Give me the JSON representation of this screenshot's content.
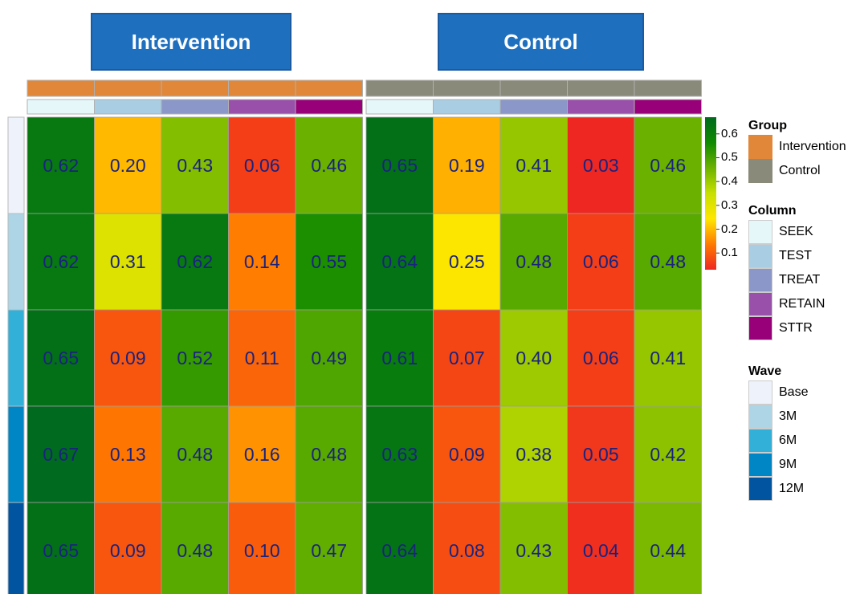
{
  "headers": {
    "left": "Intervention",
    "right": "Control"
  },
  "chart_data": {
    "type": "heatmap",
    "panels": [
      {
        "name": "Intervention",
        "group_color": "#e0873a",
        "rows": [
          "Base",
          "3M",
          "6M",
          "9M",
          "12M"
        ],
        "columns": [
          "SEEK",
          "TEST",
          "TREAT",
          "RETAIN",
          "STTR"
        ],
        "values": [
          [
            0.62,
            0.2,
            0.43,
            0.06,
            0.46
          ],
          [
            0.62,
            0.31,
            0.62,
            0.14,
            0.55
          ],
          [
            0.65,
            0.09,
            0.52,
            0.11,
            0.49
          ],
          [
            0.67,
            0.13,
            0.48,
            0.16,
            0.48
          ],
          [
            0.65,
            0.09,
            0.48,
            0.1,
            0.47
          ]
        ],
        "labels": [
          [
            "0.62",
            "0.20",
            "0.43",
            "0.06",
            "0.46"
          ],
          [
            "0.62",
            "0.31",
            "0.62",
            "0.14",
            "0.55"
          ],
          [
            "0.65",
            "0.09",
            "0.52",
            "0.11",
            "0.49"
          ],
          [
            "0.67",
            "0.13",
            "0.48",
            "0.16",
            "0.48"
          ],
          [
            "0.65",
            "0.09",
            "0.48",
            "0.10",
            "0.47"
          ]
        ]
      },
      {
        "name": "Control",
        "group_color": "#8a8a7a",
        "rows": [
          "Base",
          "3M",
          "6M",
          "9M",
          "12M"
        ],
        "columns": [
          "SEEK",
          "TEST",
          "TREAT",
          "RETAIN",
          "STTR"
        ],
        "values": [
          [
            0.65,
            0.19,
            0.41,
            0.03,
            0.46
          ],
          [
            0.64,
            0.25,
            0.48,
            0.06,
            0.48
          ],
          [
            0.61,
            0.07,
            0.4,
            0.06,
            0.41
          ],
          [
            0.63,
            0.09,
            0.38,
            0.05,
            0.42
          ],
          [
            0.64,
            0.08,
            0.43,
            0.04,
            0.44
          ]
        ],
        "labels": [
          [
            "0.65",
            "0.19",
            "0.41",
            "0.03",
            "0.46"
          ],
          [
            "0.64",
            "0.25",
            "0.48",
            "0.06",
            "0.48"
          ],
          [
            "0.61",
            "0.07",
            "0.40",
            "0.06",
            "0.41"
          ],
          [
            "0.63",
            "0.09",
            "0.38",
            "0.05",
            "0.42"
          ],
          [
            "0.64",
            "0.08",
            "0.43",
            "0.04",
            "0.44"
          ]
        ]
      }
    ],
    "color_scale": {
      "range": [
        0.03,
        0.67
      ],
      "ticks": [
        "0.6",
        "0.5",
        "0.4",
        "0.3",
        "0.2",
        "0.1"
      ],
      "tick_values": [
        0.6,
        0.5,
        0.4,
        0.3,
        0.2,
        0.1
      ],
      "colors": [
        "#ee2722",
        "#ff7a00",
        "#ffe600",
        "#c8e000",
        "#6db200",
        "#0f8a00",
        "#006a1e"
      ]
    },
    "column_colors": {
      "SEEK": "#e6f7fa",
      "TEST": "#a9cde2",
      "TREAT": "#8a97c8",
      "RETAIN": "#9850aa",
      "STTR": "#970078"
    },
    "wave_colors": {
      "Base": "#eef2fb",
      "3M": "#aed5e6",
      "6M": "#33b0d8",
      "9M": "#0086c4",
      "12M": "#0054a0"
    },
    "cell_text_color": "#1a237e",
    "legend": {
      "group_title": "Group",
      "group_items": [
        {
          "label": "Intervention",
          "color": "#e0873a"
        },
        {
          "label": "Control",
          "color": "#8a8a7a"
        }
      ],
      "column_title": "Column",
      "column_items": [
        {
          "label": "SEEK",
          "color": "#e6f7fa"
        },
        {
          "label": "TEST",
          "color": "#a9cde2"
        },
        {
          "label": "TREAT",
          "color": "#8a97c8"
        },
        {
          "label": "RETAIN",
          "color": "#9850aa"
        },
        {
          "label": "STTR",
          "color": "#970078"
        }
      ],
      "wave_title": "Wave",
      "wave_items": [
        {
          "label": "Base",
          "color": "#eef2fb"
        },
        {
          "label": "3M",
          "color": "#aed5e6"
        },
        {
          "label": "6M",
          "color": "#33b0d8"
        },
        {
          "label": "9M",
          "color": "#0086c4"
        },
        {
          "label": "12M",
          "color": "#0054a0"
        }
      ]
    }
  }
}
